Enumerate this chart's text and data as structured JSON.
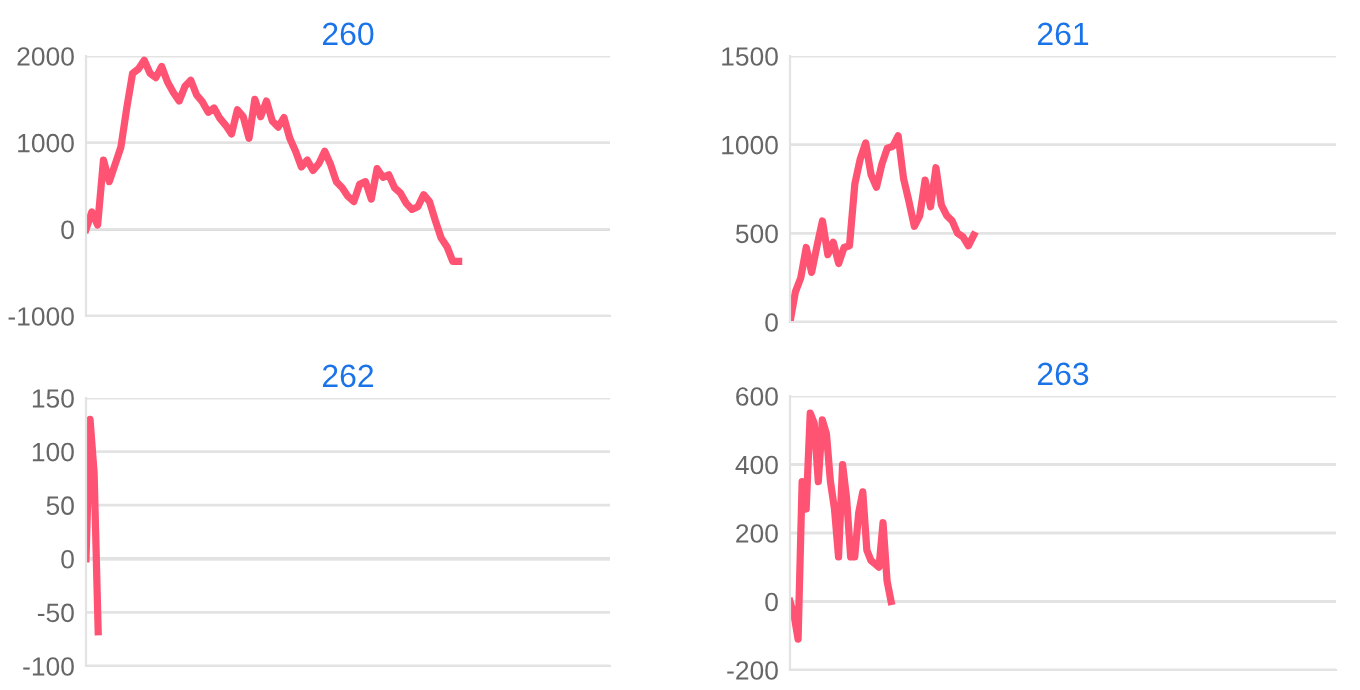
{
  "chart_data": [
    {
      "type": "line",
      "title": "260",
      "categories": [
        null,
        null,
        null,
        null,
        null,
        null,
        null,
        null,
        null,
        null,
        null,
        null,
        null,
        null,
        null,
        null,
        null,
        null,
        null,
        null,
        null,
        null,
        null,
        null,
        null,
        null,
        null,
        null,
        null,
        null,
        null,
        null,
        null,
        null,
        null,
        null,
        null,
        null,
        null,
        null,
        null,
        null,
        null,
        null,
        null,
        null,
        null,
        null,
        null,
        null,
        null,
        null,
        null,
        null,
        null,
        null,
        null,
        null,
        null,
        null,
        null,
        null,
        null,
        null,
        null,
        null,
        null,
        null,
        null,
        null,
        null,
        null,
        null,
        null,
        null,
        null,
        null,
        null,
        null,
        null,
        null,
        null,
        null,
        null,
        null,
        null,
        null,
        null,
        null,
        null,
        null
      ],
      "series": [
        {
          "color": "#ff5373",
          "values": [
            0,
            200,
            50,
            800,
            550,
            750,
            950,
            1400,
            1800,
            1850,
            1950,
            1800,
            1750,
            1880,
            1700,
            1580,
            1480,
            1650,
            1720,
            1550,
            1470,
            1350,
            1400,
            1280,
            1200,
            1100,
            1380,
            1300,
            1050,
            1500,
            1300,
            1480,
            1250,
            1180,
            1290,
            1050,
            900,
            720,
            800,
            680,
            760,
            900,
            750,
            550,
            480,
            380,
            320,
            520,
            550,
            350,
            700,
            600,
            630,
            480,
            420,
            300,
            230,
            260,
            400,
            320,
            100,
            -100,
            -200,
            -370,
            -370,
            null,
            null,
            null,
            null,
            null,
            null,
            null,
            null,
            null,
            null,
            null,
            null,
            null,
            null,
            null,
            null,
            null,
            null,
            null,
            null,
            null,
            null,
            null,
            null,
            null,
            null
          ]
        }
      ],
      "ylim": [
        -1000,
        2000
      ],
      "yticks": [
        -1000,
        0,
        1000,
        2000
      ],
      "grid": "y",
      "tick_labels": "y",
      "marker": "none",
      "line_style": "solid"
    },
    {
      "type": "line",
      "title": "261",
      "categories": [
        null,
        null,
        null,
        null,
        null,
        null,
        null,
        null,
        null,
        null,
        null,
        null,
        null,
        null,
        null,
        null,
        null,
        null,
        null,
        null,
        null,
        null,
        null,
        null,
        null,
        null,
        null,
        null,
        null,
        null,
        null,
        null,
        null,
        null,
        null,
        null,
        null,
        null,
        null,
        null,
        null,
        null,
        null,
        null,
        null,
        null,
        null,
        null,
        null,
        null,
        null,
        null,
        null,
        null,
        null,
        null,
        null,
        null,
        null,
        null,
        null,
        null,
        null,
        null,
        null,
        null,
        null,
        null,
        null,
        null,
        null,
        null,
        null,
        null,
        null,
        null,
        null,
        null,
        null,
        null,
        null,
        null,
        null,
        null,
        null,
        null,
        null,
        null,
        null,
        null,
        null,
        null,
        null,
        null,
        null,
        null,
        null,
        null,
        null,
        null,
        null,
        null
      ],
      "series": [
        {
          "color": "#ff5373",
          "values": [
            0,
            170,
            250,
            420,
            280,
            430,
            570,
            380,
            450,
            330,
            420,
            430,
            780,
            920,
            1010,
            830,
            760,
            890,
            980,
            990,
            1050,
            810,
            680,
            540,
            600,
            800,
            650,
            870,
            660,
            600,
            570,
            500,
            480,
            430,
            490,
            null,
            null,
            null,
            null,
            null,
            null,
            null,
            null,
            null,
            null,
            null,
            null,
            null,
            null,
            null,
            null,
            null,
            null,
            null,
            null,
            null,
            null,
            null,
            null,
            null,
            null,
            null,
            null,
            null,
            null,
            null,
            null,
            null,
            null,
            null,
            null,
            null,
            null,
            null,
            null,
            null,
            null,
            null,
            null,
            null,
            null,
            null,
            null,
            null,
            null,
            null,
            null,
            null,
            null,
            null,
            null,
            null,
            null,
            null,
            null,
            null,
            null,
            null,
            null,
            null,
            null,
            null
          ]
        }
      ],
      "ylim": [
        0,
        1500
      ],
      "yticks": [
        0,
        500,
        1000,
        1500
      ],
      "grid": "y",
      "tick_labels": "y",
      "marker": "none",
      "line_style": "solid"
    },
    {
      "type": "line",
      "title": "262",
      "categories": [
        null,
        null,
        null,
        null,
        null,
        null,
        null,
        null,
        null,
        null,
        null,
        null,
        null,
        null,
        null,
        null,
        null,
        null,
        null,
        null,
        null,
        null,
        null,
        null,
        null,
        null,
        null,
        null,
        null,
        null,
        null,
        null,
        null,
        null,
        null,
        null,
        null,
        null,
        null,
        null,
        null,
        null,
        null,
        null,
        null,
        null,
        null,
        null,
        null,
        null,
        null,
        null,
        null,
        null,
        null,
        null,
        null,
        null,
        null,
        null,
        null,
        null,
        null,
        null,
        null,
        null,
        null,
        null,
        null,
        null,
        null,
        null,
        null,
        null,
        null,
        null,
        null,
        null,
        null,
        null,
        null,
        null,
        null,
        null,
        null,
        null,
        null,
        null,
        null,
        null,
        null,
        null,
        null,
        null,
        null,
        null,
        null,
        null,
        null,
        null,
        null,
        null,
        null,
        null,
        null,
        null,
        null,
        null,
        null,
        null,
        null,
        null,
        null,
        null,
        null,
        null,
        null,
        null,
        null,
        null,
        null,
        null,
        null,
        null,
        null,
        null,
        null,
        null,
        null,
        null
      ],
      "series": [
        {
          "color": "#ff5373",
          "values": [
            0,
            130,
            80,
            -68,
            null,
            null,
            null,
            null,
            null,
            null,
            null,
            null,
            null,
            null,
            null,
            null,
            null,
            null,
            null,
            null,
            null,
            null,
            null,
            null,
            null,
            null,
            null,
            null,
            null,
            null,
            null,
            null,
            null,
            null,
            null,
            null,
            null,
            null,
            null,
            null,
            null,
            null,
            null,
            null,
            null,
            null,
            null,
            null,
            null,
            null,
            null,
            null,
            null,
            null,
            null,
            null,
            null,
            null,
            null,
            null,
            null,
            null,
            null,
            null,
            null,
            null,
            null,
            null,
            null,
            null,
            null,
            null,
            null,
            null,
            null,
            null,
            null,
            null,
            null,
            null,
            null,
            null,
            null,
            null,
            null,
            null,
            null,
            null,
            null,
            null,
            null,
            null,
            null,
            null,
            null,
            null,
            null,
            null,
            null,
            null,
            null,
            null,
            null,
            null,
            null,
            null,
            null,
            null,
            null,
            null,
            null,
            null,
            null,
            null,
            null,
            null,
            null,
            null,
            null,
            null,
            null,
            null,
            null,
            null,
            null,
            null,
            null,
            null,
            null,
            null
          ]
        }
      ],
      "ylim": [
        -100,
        150
      ],
      "yticks": [
        -100,
        -50,
        0,
        50,
        100,
        150
      ],
      "grid": "y",
      "tick_labels": "y",
      "marker": "none",
      "line_style": "solid"
    },
    {
      "type": "line",
      "title": "263",
      "categories": [
        null,
        null,
        null,
        null,
        null,
        null,
        null,
        null,
        null,
        null,
        null,
        null,
        null,
        null,
        null,
        null,
        null,
        null,
        null,
        null,
        null,
        null,
        null,
        null,
        null,
        null,
        null,
        null,
        null,
        null,
        null,
        null,
        null,
        null,
        null,
        null,
        null,
        null,
        null,
        null,
        null,
        null,
        null,
        null,
        null,
        null,
        null,
        null,
        null,
        null,
        null,
        null,
        null,
        null,
        null,
        null,
        null,
        null,
        null,
        null,
        null,
        null,
        null,
        null,
        null,
        null,
        null,
        null,
        null,
        null,
        null,
        null,
        null,
        null,
        null,
        null,
        null,
        null,
        null,
        null,
        null,
        null,
        null,
        null,
        null,
        null,
        null,
        null,
        null,
        null,
        null,
        null,
        null,
        null,
        null,
        null,
        null,
        null,
        null,
        null,
        null,
        null,
        null,
        null,
        null,
        null,
        null,
        null,
        null,
        null,
        null,
        null,
        null,
        null,
        null,
        null,
        null,
        null,
        null,
        null,
        null,
        null,
        null,
        null,
        null,
        null,
        null,
        null,
        null,
        null,
        null,
        null,
        null,
        null,
        null,
        null
      ],
      "series": [
        {
          "color": "#ff5373",
          "values": [
            0,
            -40,
            -110,
            350,
            270,
            550,
            520,
            350,
            530,
            490,
            350,
            270,
            130,
            400,
            300,
            130,
            130,
            260,
            320,
            150,
            120,
            110,
            100,
            230,
            60,
            0,
            null,
            null,
            null,
            null,
            null,
            null,
            null,
            null,
            null,
            null,
            null,
            null,
            null,
            null,
            null,
            null,
            null,
            null,
            null,
            null,
            null,
            null,
            null,
            null,
            null,
            null,
            null,
            null,
            null,
            null,
            null,
            null,
            null,
            null,
            null,
            null,
            null,
            null,
            null,
            null,
            null,
            null,
            null,
            null,
            null,
            null,
            null,
            null,
            null,
            null,
            null,
            null,
            null,
            null,
            null,
            null,
            null,
            null,
            null,
            null,
            null,
            null,
            null,
            null,
            null,
            null,
            null,
            null,
            null,
            null,
            null,
            null,
            null,
            null,
            null,
            null,
            null,
            null,
            null,
            null,
            null,
            null,
            null,
            null,
            null,
            null,
            null,
            null,
            null,
            null,
            null,
            null,
            null,
            null,
            null,
            null,
            null,
            null,
            null,
            null,
            null,
            null,
            null,
            null,
            null,
            null,
            null,
            null,
            null,
            null
          ]
        }
      ],
      "ylim": [
        -200,
        600
      ],
      "yticks": [
        -200,
        0,
        200,
        400,
        600
      ],
      "grid": "y",
      "tick_labels": "y",
      "marker": "none",
      "line_style": "solid"
    }
  ]
}
